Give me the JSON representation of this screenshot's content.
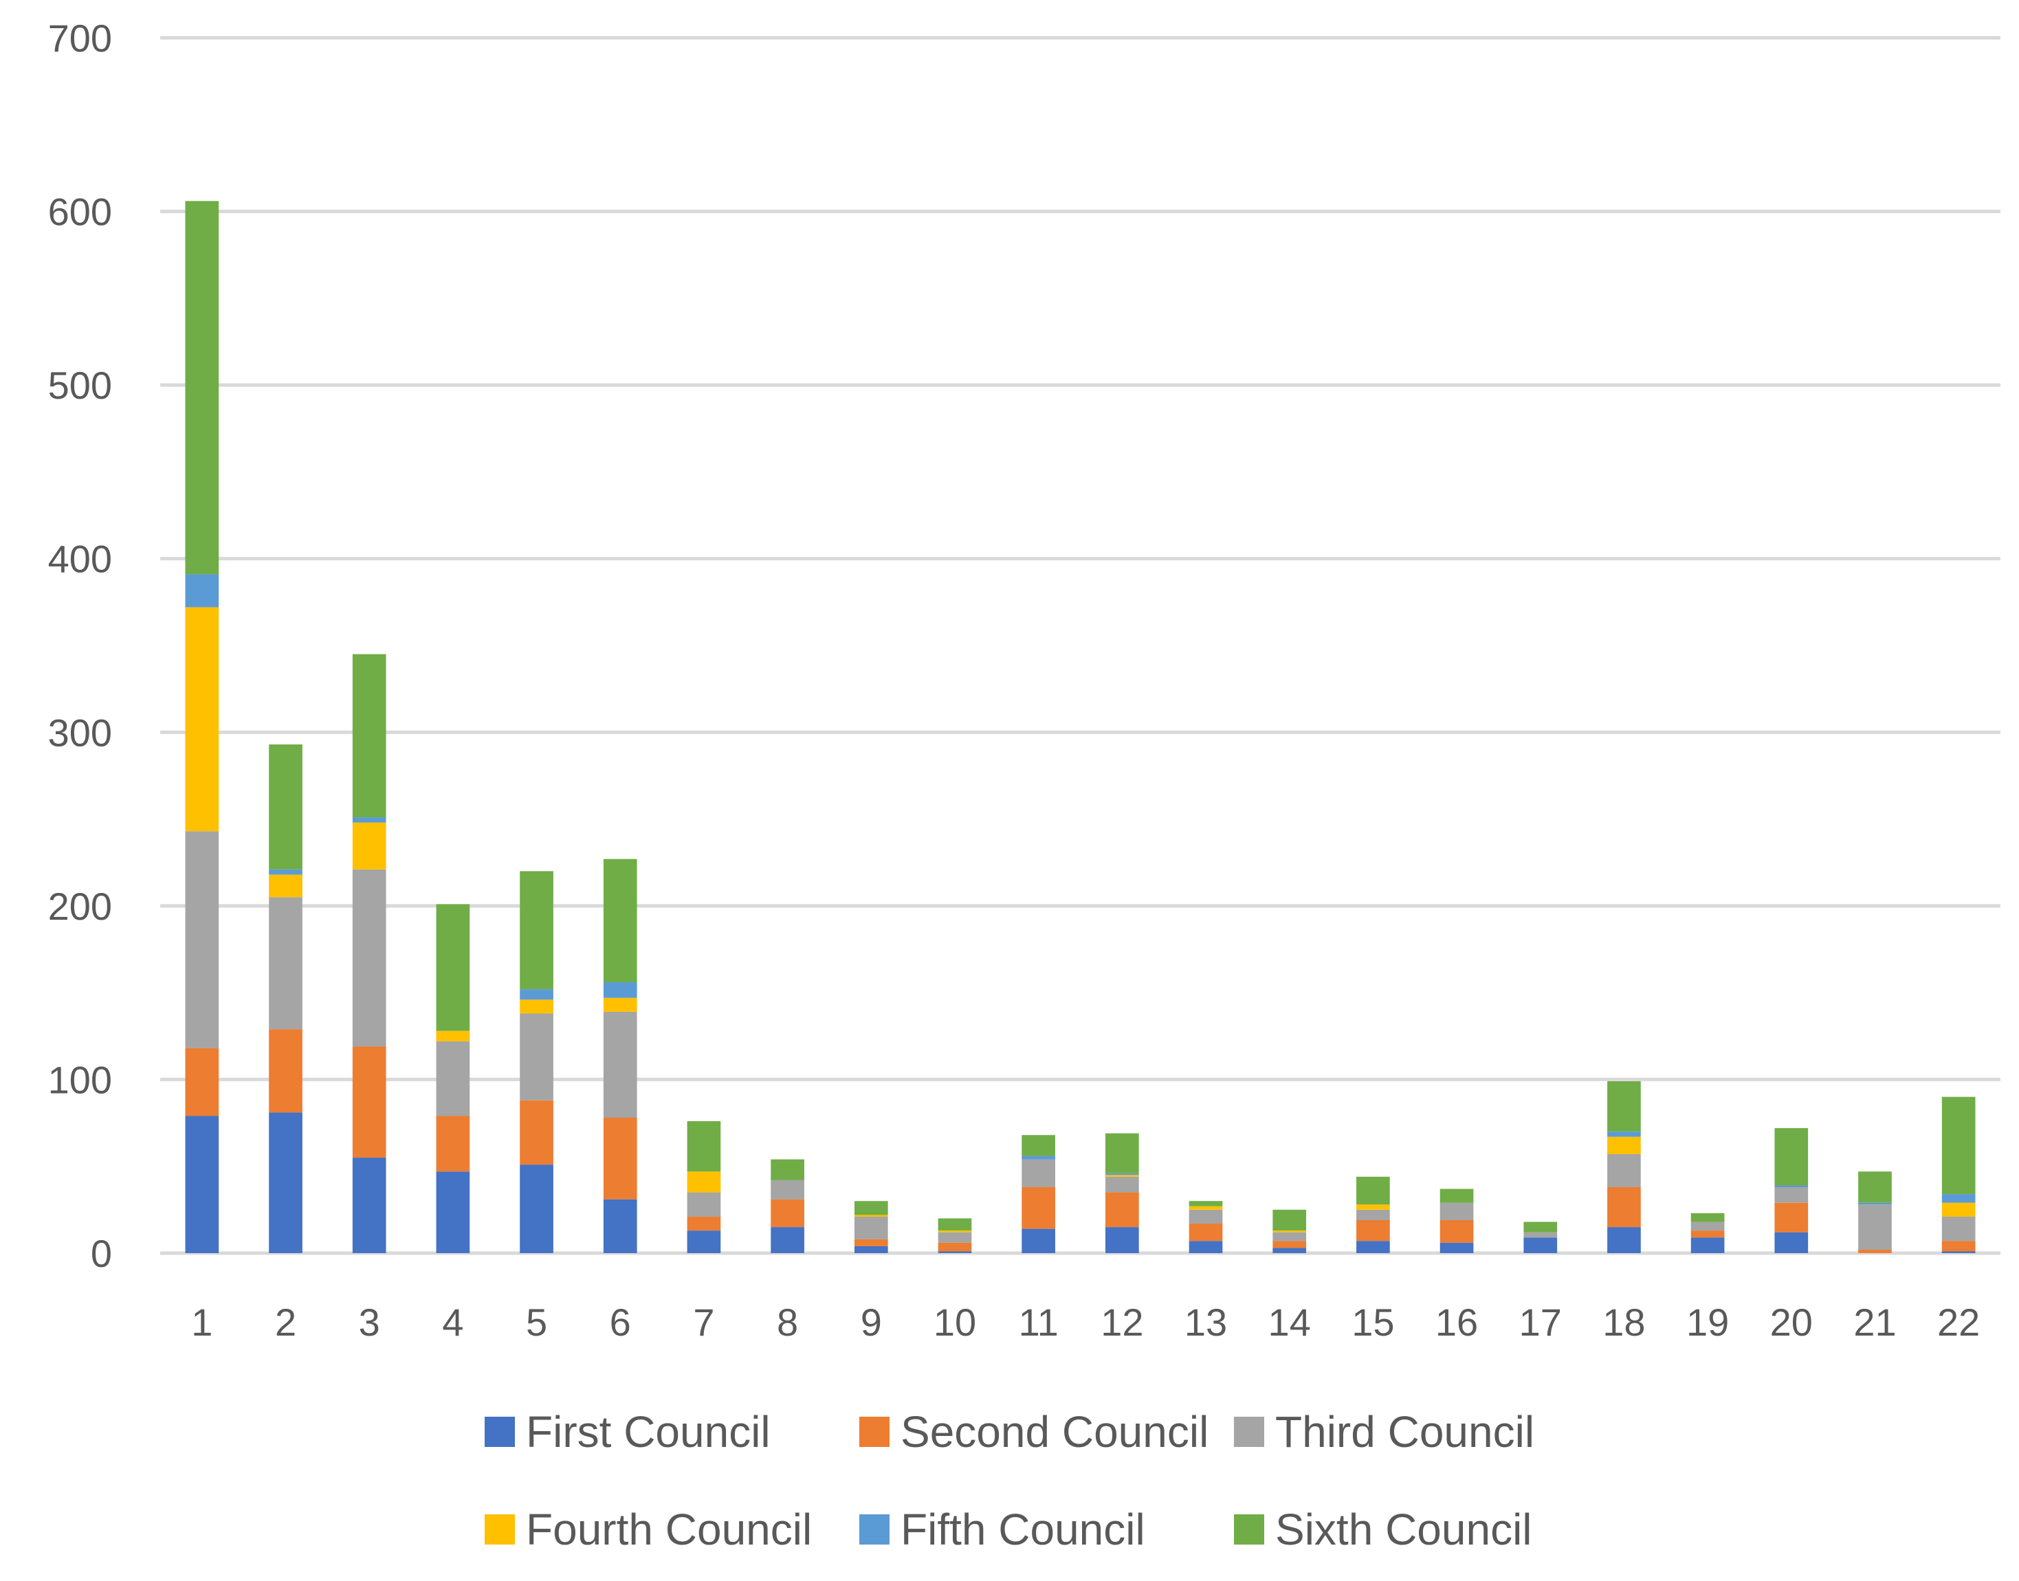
{
  "chart_data": {
    "type": "bar",
    "stacked": true,
    "categories": [
      "1",
      "2",
      "3",
      "4",
      "5",
      "6",
      "7",
      "8",
      "9",
      "10",
      "11",
      "12",
      "13",
      "14",
      "15",
      "16",
      "17",
      "18",
      "19",
      "20",
      "21",
      "22"
    ],
    "ylim": [
      0,
      700
    ],
    "yticks": [
      0,
      100,
      200,
      300,
      400,
      500,
      600,
      700
    ],
    "grid": true,
    "legend": "bottom",
    "series": [
      {
        "name": "First Council",
        "color": "#4472c4",
        "values": [
          79,
          81,
          55,
          47,
          51,
          31,
          13,
          15,
          4,
          1,
          14,
          15,
          7,
          3,
          7,
          6,
          9,
          15,
          9,
          12,
          0,
          1
        ]
      },
      {
        "name": "Second Council",
        "color": "#ed7d31",
        "values": [
          39,
          48,
          64,
          32,
          37,
          47,
          8,
          16,
          4,
          5,
          24,
          20,
          10,
          4,
          12,
          13,
          0,
          23,
          4,
          17,
          2,
          6
        ]
      },
      {
        "name": "Third Council",
        "color": "#a5a5a5",
        "values": [
          125,
          76,
          102,
          43,
          50,
          61,
          14,
          11,
          13,
          6,
          16,
          9,
          8,
          5,
          6,
          10,
          3,
          19,
          5,
          9,
          26,
          14
        ]
      },
      {
        "name": "Fourth Council",
        "color": "#ffc000",
        "values": [
          129,
          13,
          27,
          6,
          8,
          8,
          12,
          0,
          1,
          1,
          0,
          1,
          2,
          1,
          3,
          0,
          0,
          10,
          0,
          0,
          0,
          8
        ]
      },
      {
        "name": "Fifth Council",
        "color": "#5b9bd5",
        "values": [
          19,
          3,
          3,
          0,
          6,
          9,
          0,
          0,
          0,
          0,
          2,
          1,
          0,
          0,
          0,
          0,
          0,
          3,
          0,
          1,
          1,
          5
        ]
      },
      {
        "name": "Sixth Council",
        "color": "#70ad47",
        "values": [
          215,
          72,
          94,
          73,
          68,
          71,
          29,
          12,
          8,
          7,
          12,
          23,
          3,
          12,
          16,
          8,
          6,
          29,
          5,
          33,
          18,
          56
        ]
      }
    ]
  }
}
